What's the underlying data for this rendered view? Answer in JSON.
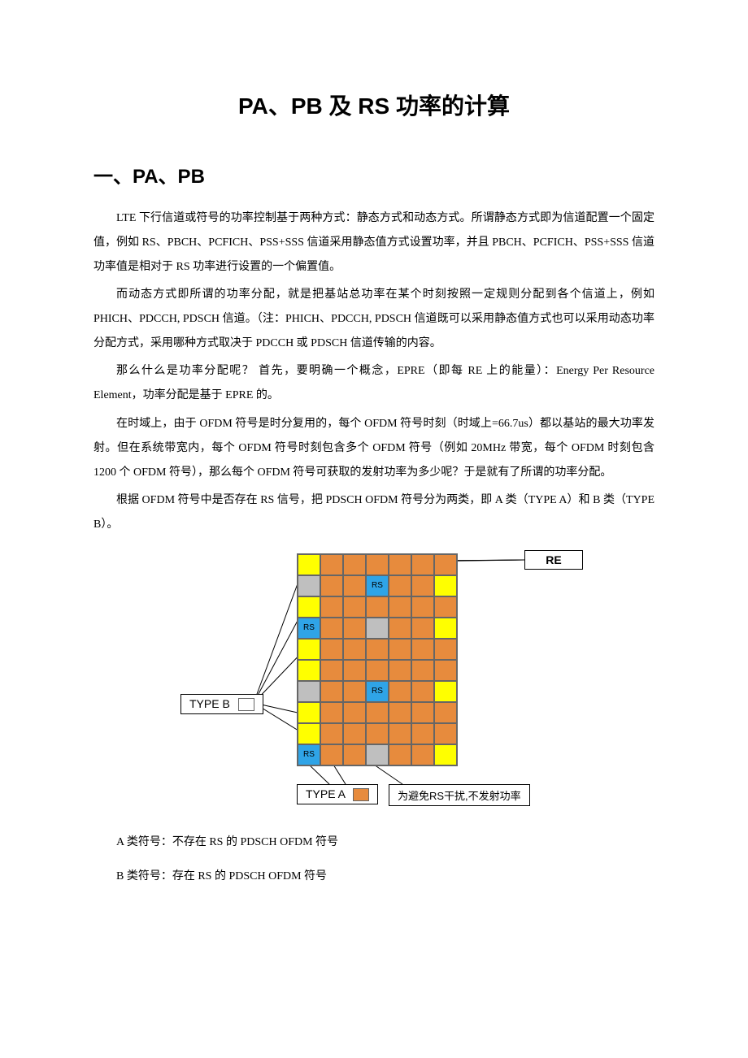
{
  "title": "PA、PB 及 RS 功率的计算",
  "section1_heading": "一、PA、PB",
  "paragraphs": {
    "p1": "LTE 下行信道或符号的功率控制基于两种方式：静态方式和动态方式。所谓静态方式即为信道配置一个固定值，例如 RS、PBCH、PCFICH、PSS+SSS 信道采用静态值方式设置功率，并且 PBCH、PCFICH、PSS+SSS 信道功率值是相对于 RS 功率进行设置的一个偏置值。",
    "p2": "而动态方式即所谓的功率分配，就是把基站总功率在某个时刻按照一定规则分配到各个信道上，例如 PHICH、PDCCH, PDSCH 信道。（注：PHICH、PDCCH, PDSCH 信道既可以采用静态值方式也可以采用动态功率分配方式，采用哪种方式取决于 PDCCH 或 PDSCH 信道传输的内容。",
    "p3": "那么什么是功率分配呢？ 首先，要明确一个概念，EPRE（即每 RE 上的能量）：Energy Per Resource Element，功率分配是基于 EPRE 的。",
    "p4": "在时域上，由于 OFDM 符号是时分复用的，每个 OFDM 符号时刻（时域上=66.7us）都以基站的最大功率发射。但在系统带宽内，每个 OFDM 符号时刻包含多个 OFDM 符号（例如 20MHz 带宽，每个 OFDM 时刻包含 1200 个 OFDM 符号），那么每个 OFDM 符号可获取的发射功率为多少呢？于是就有了所谓的功率分配。",
    "p5": "根据 OFDM 符号中是否存在 RS 信号，把 PDSCH OFDM 符号分为两类，即 A 类（TYPE A）和 B 类（TYPE B）。"
  },
  "diagram": {
    "labels": {
      "re": "RE",
      "type_b_box": "TYPE B",
      "type_a_box": "TYPE A",
      "avoid_box": "为避免RS干扰,不发射功率",
      "rs_text": "RS"
    },
    "swatch_colors": {
      "type_b": "#ffff00",
      "type_a": "#e78b3d"
    },
    "cell_colors": {
      "orange": "#e78b3d",
      "yellow": "#ffff00",
      "gray": "#bfbfbf",
      "rs_blue": "#2fa4e7"
    },
    "cols": 7,
    "rows": 10,
    "grid": [
      [
        "y",
        "o",
        "o",
        "o",
        "o",
        "o",
        "o"
      ],
      [
        "g",
        "o",
        "o",
        "rs",
        "o",
        "o",
        "y"
      ],
      [
        "y",
        "o",
        "o",
        "o",
        "o",
        "o",
        "o"
      ],
      [
        "rs",
        "o",
        "o",
        "g",
        "o",
        "o",
        "y"
      ],
      [
        "y",
        "o",
        "o",
        "o",
        "o",
        "o",
        "o"
      ],
      [
        "y",
        "o",
        "o",
        "o",
        "o",
        "o",
        "o"
      ],
      [
        "g",
        "o",
        "o",
        "rs",
        "o",
        "o",
        "y"
      ],
      [
        "y",
        "o",
        "o",
        "o",
        "o",
        "o",
        "o"
      ],
      [
        "y",
        "o",
        "o",
        "o",
        "o",
        "o",
        "o"
      ],
      [
        "rs",
        "o",
        "o",
        "g",
        "o",
        "o",
        "y"
      ]
    ]
  },
  "notes": {
    "n1": "A 类符号：不存在 RS 的 PDSCH OFDM 符号",
    "n2": "B 类符号：存在 RS 的 PDSCH OFDM 符号"
  }
}
